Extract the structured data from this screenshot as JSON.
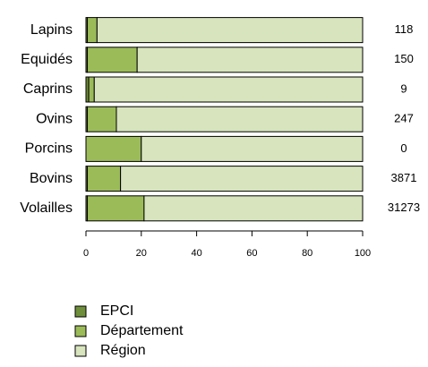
{
  "chart_data": {
    "type": "stacked_barh",
    "categories": [
      "Lapins",
      "Equidés",
      "Caprins",
      "Ovins",
      "Porcins",
      "Bovins",
      "Volailles"
    ],
    "series": [
      {
        "name": "EPCI",
        "color": "#6f8f3c",
        "values": [
          0.5,
          0.5,
          1,
          0.5,
          0,
          0.5,
          0.5
        ]
      },
      {
        "name": "Département",
        "color": "#9bbb59",
        "values": [
          3.5,
          18,
          2,
          10.5,
          20,
          12,
          20.5
        ]
      },
      {
        "name": "Région",
        "color": "#d7e4bd",
        "values": [
          96,
          81.5,
          97,
          89,
          80,
          87.5,
          79
        ]
      }
    ],
    "annotations": [
      "118",
      "150",
      "9",
      "247",
      "0",
      "3871",
      "31273"
    ],
    "xlim": [
      0,
      100
    ],
    "xticks": [
      0,
      20,
      40,
      60,
      80,
      100
    ]
  }
}
